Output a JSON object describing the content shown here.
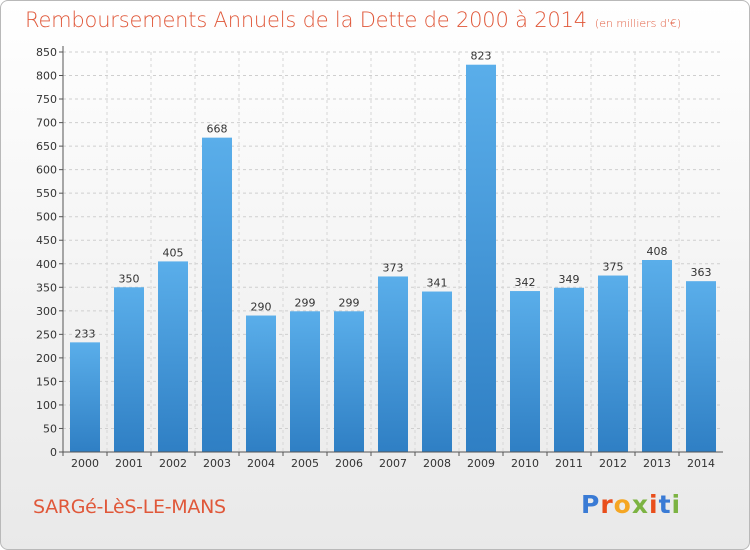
{
  "chart_data": {
    "type": "bar",
    "title": "Remboursements Annuels de la Dette de 2000 à 2014",
    "subtitle": "(en milliers d'€)",
    "xlabel": "",
    "ylabel": "",
    "categories": [
      "2000",
      "2001",
      "2002",
      "2003",
      "2004",
      "2005",
      "2006",
      "2007",
      "2008",
      "2009",
      "2010",
      "2011",
      "2012",
      "2013",
      "2014"
    ],
    "values": [
      233,
      350,
      405,
      668,
      290,
      299,
      299,
      373,
      341,
      823,
      342,
      349,
      375,
      408,
      363
    ],
    "ylim": [
      0,
      850
    ],
    "yticks": [
      0,
      50,
      100,
      150,
      200,
      250,
      300,
      350,
      400,
      450,
      500,
      550,
      600,
      650,
      700,
      750,
      800,
      850
    ],
    "grid": true,
    "legend": "none",
    "bar_color": "#4fa3e3"
  },
  "footer": {
    "city": "SARGé-LèS-LE-MANS",
    "logo": [
      "P",
      "r",
      "o",
      "x",
      "i",
      "t",
      "i"
    ]
  }
}
